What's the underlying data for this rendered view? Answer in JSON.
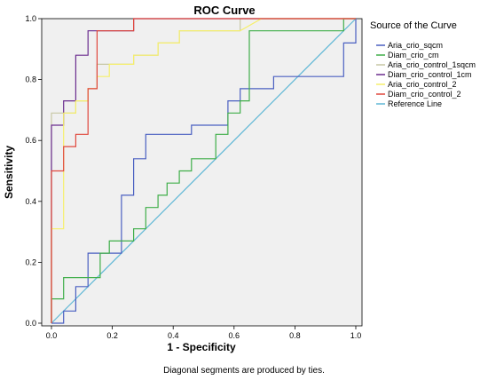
{
  "chart_data": {
    "type": "line",
    "title": "ROC Curve",
    "xlabel": "1 - Specificity",
    "ylabel": "Sensitivity",
    "xlim": [
      0,
      1
    ],
    "ylim": [
      0,
      1
    ],
    "x_ticks": [
      "0.0",
      "0.2",
      "0.4",
      "0.6",
      "0.8",
      "1.0"
    ],
    "y_ticks": [
      "0.0",
      "0.2",
      "0.4",
      "0.6",
      "0.8",
      "1.0"
    ],
    "grid": false,
    "legend_title": "Source of the Curve",
    "legend_position": "right",
    "footnote": "Diagonal segments are produced by ties.",
    "series": [
      {
        "name": "Aria_crio_sqcm",
        "color": "#4a5fc1",
        "points": [
          [
            0,
            0
          ],
          [
            0.04,
            0
          ],
          [
            0.04,
            0.04
          ],
          [
            0.08,
            0.04
          ],
          [
            0.08,
            0.12
          ],
          [
            0.12,
            0.12
          ],
          [
            0.12,
            0.23
          ],
          [
            0.16,
            0.23
          ],
          [
            0.23,
            0.23
          ],
          [
            0.23,
            0.42
          ],
          [
            0.27,
            0.42
          ],
          [
            0.27,
            0.54
          ],
          [
            0.31,
            0.54
          ],
          [
            0.31,
            0.62
          ],
          [
            0.38,
            0.62
          ],
          [
            0.46,
            0.62
          ],
          [
            0.46,
            0.65
          ],
          [
            0.58,
            0.65
          ],
          [
            0.58,
            0.73
          ],
          [
            0.62,
            0.73
          ],
          [
            0.62,
            0.77
          ],
          [
            0.69,
            0.77
          ],
          [
            0.69,
            0.77
          ],
          [
            0.73,
            0.77
          ],
          [
            0.73,
            0.81
          ],
          [
            0.96,
            0.81
          ],
          [
            0.96,
            0.92
          ],
          [
            0.96,
            0.92
          ],
          [
            1,
            0.92
          ],
          [
            1,
            1
          ]
        ]
      },
      {
        "name": "Diam_crio_cm",
        "color": "#3fae49",
        "points": [
          [
            0,
            0
          ],
          [
            0,
            0.08
          ],
          [
            0.04,
            0.08
          ],
          [
            0.04,
            0.15
          ],
          [
            0.12,
            0.15
          ],
          [
            0.16,
            0.15
          ],
          [
            0.16,
            0.23
          ],
          [
            0.19,
            0.23
          ],
          [
            0.19,
            0.27
          ],
          [
            0.23,
            0.27
          ],
          [
            0.27,
            0.27
          ],
          [
            0.27,
            0.31
          ],
          [
            0.31,
            0.31
          ],
          [
            0.31,
            0.38
          ],
          [
            0.35,
            0.38
          ],
          [
            0.35,
            0.42
          ],
          [
            0.38,
            0.42
          ],
          [
            0.38,
            0.46
          ],
          [
            0.42,
            0.46
          ],
          [
            0.42,
            0.5
          ],
          [
            0.46,
            0.5
          ],
          [
            0.46,
            0.54
          ],
          [
            0.54,
            0.54
          ],
          [
            0.54,
            0.62
          ],
          [
            0.58,
            0.62
          ],
          [
            0.58,
            0.69
          ],
          [
            0.62,
            0.69
          ],
          [
            0.62,
            0.73
          ],
          [
            0.65,
            0.73
          ],
          [
            0.65,
            0.96
          ],
          [
            0.96,
            0.96
          ],
          [
            0.96,
            1
          ],
          [
            1,
            1
          ]
        ]
      },
      {
        "name": "Aria_crio_control_1sqcm",
        "color": "#c7c7a4",
        "points": [
          [
            0,
            0
          ],
          [
            0,
            0.69
          ],
          [
            0.08,
            0.69
          ],
          [
            0.08,
            0.73
          ],
          [
            0.12,
            0.73
          ],
          [
            0.12,
            0.77
          ],
          [
            0.15,
            0.77
          ],
          [
            0.15,
            0.85
          ],
          [
            0.27,
            0.85
          ],
          [
            0.27,
            0.88
          ],
          [
            0.35,
            0.88
          ],
          [
            0.35,
            0.92
          ],
          [
            0.42,
            0.92
          ],
          [
            0.42,
            0.96
          ],
          [
            0.62,
            0.96
          ],
          [
            0.62,
            1
          ],
          [
            1,
            1
          ]
        ]
      },
      {
        "name": "Diam_crio_control_1cm",
        "color": "#6a2c8e",
        "points": [
          [
            0,
            0
          ],
          [
            0,
            0.65
          ],
          [
            0.04,
            0.65
          ],
          [
            0.04,
            0.73
          ],
          [
            0.08,
            0.73
          ],
          [
            0.08,
            0.88
          ],
          [
            0.12,
            0.88
          ],
          [
            0.12,
            0.96
          ],
          [
            0.27,
            0.96
          ],
          [
            0.27,
            1
          ],
          [
            1,
            1
          ]
        ]
      },
      {
        "name": "Aria_crio_control_2",
        "color": "#f6ef6a",
        "points": [
          [
            0,
            0
          ],
          [
            0,
            0.31
          ],
          [
            0.04,
            0.31
          ],
          [
            0.04,
            0.69
          ],
          [
            0.08,
            0.69
          ],
          [
            0.08,
            0.73
          ],
          [
            0.12,
            0.73
          ],
          [
            0.12,
            0.77
          ],
          [
            0.15,
            0.77
          ],
          [
            0.15,
            0.81
          ],
          [
            0.19,
            0.81
          ],
          [
            0.19,
            0.85
          ],
          [
            0.27,
            0.85
          ],
          [
            0.27,
            0.88
          ],
          [
            0.35,
            0.88
          ],
          [
            0.35,
            0.92
          ],
          [
            0.42,
            0.92
          ],
          [
            0.42,
            0.96
          ],
          [
            0.62,
            0.96
          ],
          [
            0.69,
            1
          ],
          [
            1,
            1
          ]
        ]
      },
      {
        "name": "Diam_crio_control_2",
        "color": "#e0473c",
        "points": [
          [
            0,
            0
          ],
          [
            0,
            0.5
          ],
          [
            0.04,
            0.5
          ],
          [
            0.04,
            0.58
          ],
          [
            0.08,
            0.58
          ],
          [
            0.08,
            0.62
          ],
          [
            0.12,
            0.62
          ],
          [
            0.12,
            0.77
          ],
          [
            0.15,
            0.77
          ],
          [
            0.15,
            0.96
          ],
          [
            0.27,
            0.96
          ],
          [
            0.27,
            1
          ],
          [
            1,
            1
          ]
        ]
      },
      {
        "name": "Reference Line",
        "color": "#5fb7d6",
        "points": [
          [
            0,
            0
          ],
          [
            1,
            1
          ]
        ]
      }
    ]
  }
}
